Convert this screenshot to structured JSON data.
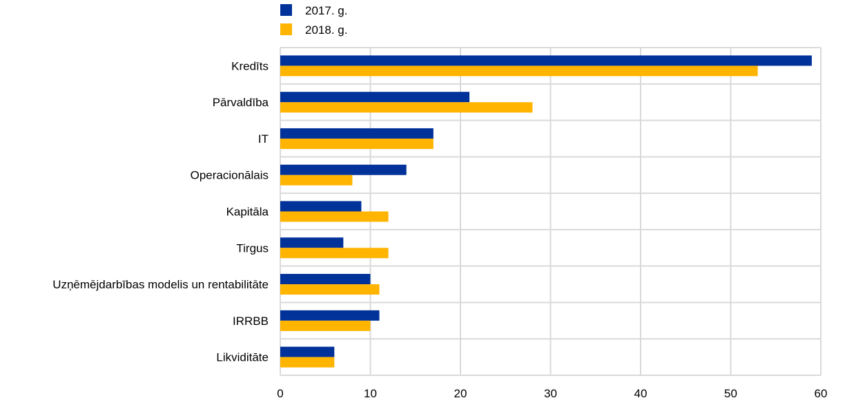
{
  "chart_data": {
    "type": "bar",
    "orientation": "horizontal",
    "title": "",
    "xlabel": "",
    "ylabel": "",
    "xlim": [
      0,
      60
    ],
    "xticks": [
      0,
      10,
      20,
      30,
      40,
      50,
      60
    ],
    "grid": true,
    "legend_position": "top-left",
    "categories": [
      "Kredīts",
      "Pārvaldība",
      "IT",
      "Operacionālais",
      "Kapitāla",
      "Tirgus",
      "Uzņēmējdarbības modelis un rentabilitāte",
      "IRRBB",
      "Likviditāte"
    ],
    "series": [
      {
        "name": "2017. g.",
        "color": "#003299",
        "values": [
          59,
          21,
          17,
          14,
          9,
          7,
          10,
          11,
          6
        ]
      },
      {
        "name": "2018. g.",
        "color": "#FFB400",
        "values": [
          53,
          28,
          17,
          8,
          12,
          12,
          11,
          10,
          6
        ]
      }
    ],
    "gridline_color": "#d9d9d9"
  }
}
